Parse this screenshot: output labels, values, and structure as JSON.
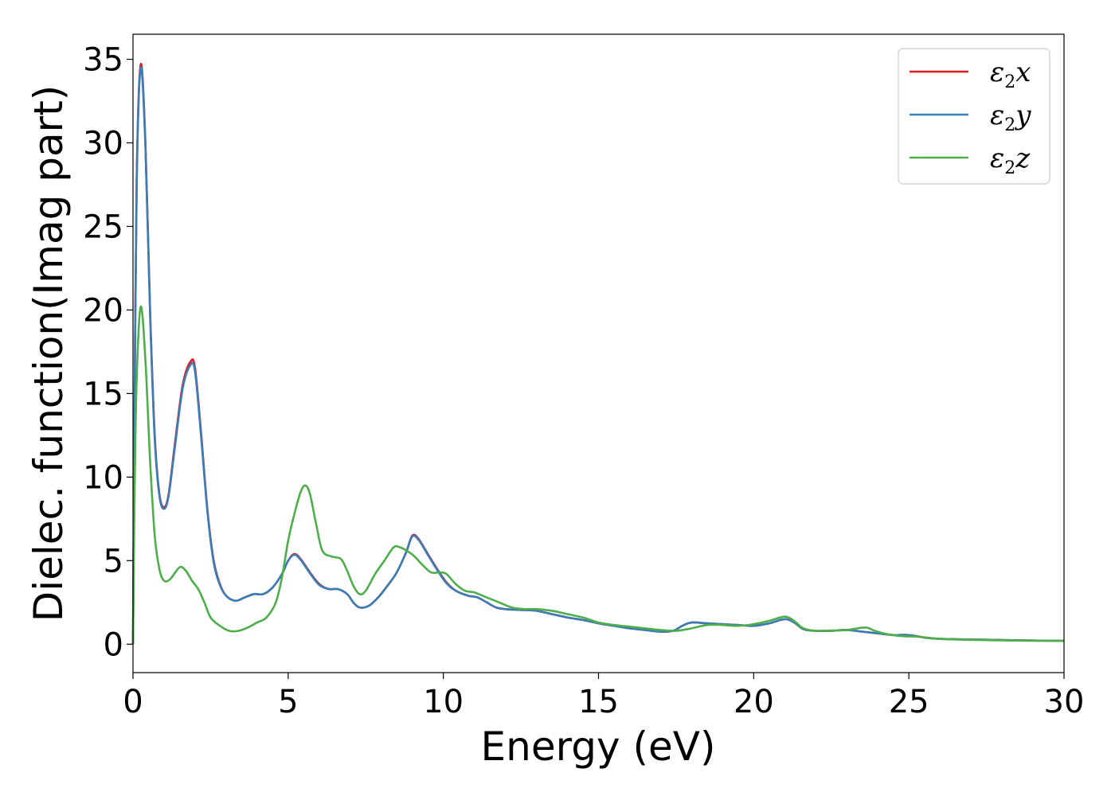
{
  "chart_data": {
    "type": "line",
    "title": "",
    "xlabel": "Energy (eV)",
    "ylabel": "Dielec. function(Imag part)",
    "xlim": [
      0,
      30
    ],
    "ylim": [
      -1.7,
      36.5
    ],
    "xticks": [
      0,
      5,
      10,
      15,
      20,
      25,
      30
    ],
    "yticks": [
      0,
      5,
      10,
      15,
      20,
      25,
      30,
      35
    ],
    "grid": false,
    "legend_position": "top-right",
    "series": [
      {
        "name": "ε2x",
        "legend": {
          "base": "ε",
          "sub": "2",
          "suffix": "x"
        },
        "color": "#e41a1c",
        "points": [
          [
            0,
            0
          ],
          [
            0.05,
            14
          ],
          [
            0.12,
            28
          ],
          [
            0.25,
            34.7
          ],
          [
            0.4,
            30
          ],
          [
            0.55,
            20
          ],
          [
            0.7,
            12.5
          ],
          [
            0.85,
            9
          ],
          [
            1.0,
            8.2
          ],
          [
            1.15,
            9
          ],
          [
            1.35,
            12
          ],
          [
            1.6,
            15.5
          ],
          [
            1.85,
            16.9
          ],
          [
            2.0,
            16.5
          ],
          [
            2.2,
            12.5
          ],
          [
            2.4,
            8
          ],
          [
            2.6,
            5
          ],
          [
            2.8,
            3.6
          ],
          [
            3.0,
            2.9
          ],
          [
            3.3,
            2.6
          ],
          [
            3.6,
            2.8
          ],
          [
            3.9,
            3.0
          ],
          [
            4.2,
            3.0
          ],
          [
            4.5,
            3.4
          ],
          [
            4.8,
            4.2
          ],
          [
            5.0,
            5.0
          ],
          [
            5.2,
            5.4
          ],
          [
            5.4,
            5.1
          ],
          [
            5.7,
            4.3
          ],
          [
            6.0,
            3.6
          ],
          [
            6.3,
            3.3
          ],
          [
            6.6,
            3.3
          ],
          [
            6.9,
            3.0
          ],
          [
            7.1,
            2.5
          ],
          [
            7.3,
            2.2
          ],
          [
            7.6,
            2.3
          ],
          [
            7.9,
            2.8
          ],
          [
            8.2,
            3.5
          ],
          [
            8.5,
            4.3
          ],
          [
            8.8,
            5.5
          ],
          [
            9.0,
            6.5
          ],
          [
            9.2,
            6.3
          ],
          [
            9.5,
            5.4
          ],
          [
            9.8,
            4.5
          ],
          [
            10.1,
            3.7
          ],
          [
            10.4,
            3.2
          ],
          [
            10.8,
            2.9
          ],
          [
            11.1,
            2.8
          ],
          [
            11.4,
            2.5
          ],
          [
            11.7,
            2.2
          ],
          [
            12.0,
            2.1
          ],
          [
            12.5,
            2.05
          ],
          [
            13.0,
            2.0
          ],
          [
            13.5,
            1.8
          ],
          [
            14.0,
            1.6
          ],
          [
            14.5,
            1.45
          ],
          [
            15.0,
            1.25
          ],
          [
            15.5,
            1.1
          ],
          [
            16.0,
            0.95
          ],
          [
            16.5,
            0.85
          ],
          [
            17.0,
            0.75
          ],
          [
            17.4,
            0.8
          ],
          [
            17.7,
            1.1
          ],
          [
            18.0,
            1.3
          ],
          [
            18.5,
            1.25
          ],
          [
            19.0,
            1.2
          ],
          [
            19.5,
            1.15
          ],
          [
            20.0,
            1.1
          ],
          [
            20.5,
            1.25
          ],
          [
            21.0,
            1.5
          ],
          [
            21.3,
            1.3
          ],
          [
            21.6,
            0.9
          ],
          [
            22.0,
            0.8
          ],
          [
            22.5,
            0.8
          ],
          [
            23.0,
            0.85
          ],
          [
            23.5,
            0.75
          ],
          [
            24.0,
            0.65
          ],
          [
            24.5,
            0.55
          ],
          [
            25.0,
            0.55
          ],
          [
            25.5,
            0.4
          ],
          [
            26.0,
            0.32
          ],
          [
            27.0,
            0.28
          ],
          [
            28.0,
            0.25
          ],
          [
            29.0,
            0.22
          ],
          [
            30.0,
            0.2
          ]
        ]
      },
      {
        "name": "ε2y",
        "legend": {
          "base": "ε",
          "sub": "2",
          "suffix": "y"
        },
        "color": "#377eb8",
        "points": [
          [
            0,
            0
          ],
          [
            0.05,
            13.8
          ],
          [
            0.12,
            27.8
          ],
          [
            0.25,
            34.5
          ],
          [
            0.4,
            29.8
          ],
          [
            0.55,
            19.8
          ],
          [
            0.7,
            12.3
          ],
          [
            0.85,
            8.9
          ],
          [
            1.0,
            8.1
          ],
          [
            1.15,
            8.9
          ],
          [
            1.35,
            11.8
          ],
          [
            1.6,
            15.3
          ],
          [
            1.85,
            16.7
          ],
          [
            2.0,
            16.3
          ],
          [
            2.2,
            12.3
          ],
          [
            2.4,
            7.9
          ],
          [
            2.6,
            4.9
          ],
          [
            2.8,
            3.55
          ],
          [
            3.0,
            2.9
          ],
          [
            3.3,
            2.6
          ],
          [
            3.6,
            2.8
          ],
          [
            3.9,
            3.0
          ],
          [
            4.2,
            3.0
          ],
          [
            4.5,
            3.4
          ],
          [
            4.8,
            4.2
          ],
          [
            5.0,
            5.0
          ],
          [
            5.2,
            5.35
          ],
          [
            5.4,
            5.05
          ],
          [
            5.7,
            4.25
          ],
          [
            6.0,
            3.55
          ],
          [
            6.3,
            3.3
          ],
          [
            6.6,
            3.3
          ],
          [
            6.9,
            3.0
          ],
          [
            7.1,
            2.5
          ],
          [
            7.3,
            2.2
          ],
          [
            7.6,
            2.3
          ],
          [
            7.9,
            2.8
          ],
          [
            8.2,
            3.5
          ],
          [
            8.5,
            4.3
          ],
          [
            8.8,
            5.5
          ],
          [
            9.0,
            6.45
          ],
          [
            9.2,
            6.25
          ],
          [
            9.5,
            5.35
          ],
          [
            9.8,
            4.45
          ],
          [
            10.1,
            3.65
          ],
          [
            10.4,
            3.2
          ],
          [
            10.8,
            2.9
          ],
          [
            11.1,
            2.8
          ],
          [
            11.4,
            2.5
          ],
          [
            11.7,
            2.2
          ],
          [
            12.0,
            2.1
          ],
          [
            12.5,
            2.05
          ],
          [
            13.0,
            2.0
          ],
          [
            13.5,
            1.8
          ],
          [
            14.0,
            1.6
          ],
          [
            14.5,
            1.45
          ],
          [
            15.0,
            1.25
          ],
          [
            15.5,
            1.1
          ],
          [
            16.0,
            0.95
          ],
          [
            16.5,
            0.85
          ],
          [
            17.0,
            0.75
          ],
          [
            17.4,
            0.8
          ],
          [
            17.7,
            1.1
          ],
          [
            18.0,
            1.3
          ],
          [
            18.5,
            1.25
          ],
          [
            19.0,
            1.2
          ],
          [
            19.5,
            1.15
          ],
          [
            20.0,
            1.1
          ],
          [
            20.5,
            1.25
          ],
          [
            21.0,
            1.5
          ],
          [
            21.3,
            1.3
          ],
          [
            21.6,
            0.9
          ],
          [
            22.0,
            0.8
          ],
          [
            22.5,
            0.8
          ],
          [
            23.0,
            0.85
          ],
          [
            23.5,
            0.75
          ],
          [
            24.0,
            0.65
          ],
          [
            24.5,
            0.55
          ],
          [
            25.0,
            0.55
          ],
          [
            25.5,
            0.4
          ],
          [
            26.0,
            0.32
          ],
          [
            27.0,
            0.28
          ],
          [
            28.0,
            0.25
          ],
          [
            29.0,
            0.22
          ],
          [
            30.0,
            0.2
          ]
        ]
      },
      {
        "name": "ε2z",
        "legend": {
          "base": "ε",
          "sub": "2",
          "suffix": "z"
        },
        "color": "#4daf4a",
        "points": [
          [
            0,
            0
          ],
          [
            0.05,
            9
          ],
          [
            0.12,
            16
          ],
          [
            0.25,
            20.2
          ],
          [
            0.4,
            17
          ],
          [
            0.55,
            11
          ],
          [
            0.7,
            6.5
          ],
          [
            0.85,
            4.5
          ],
          [
            1.0,
            3.8
          ],
          [
            1.2,
            3.9
          ],
          [
            1.5,
            4.6
          ],
          [
            1.7,
            4.4
          ],
          [
            1.9,
            3.8
          ],
          [
            2.1,
            3.3
          ],
          [
            2.3,
            2.5
          ],
          [
            2.5,
            1.6
          ],
          [
            2.8,
            1.1
          ],
          [
            3.1,
            0.8
          ],
          [
            3.4,
            0.8
          ],
          [
            3.7,
            1.0
          ],
          [
            4.0,
            1.3
          ],
          [
            4.3,
            1.6
          ],
          [
            4.6,
            2.5
          ],
          [
            4.8,
            4.0
          ],
          [
            5.0,
            6.2
          ],
          [
            5.2,
            7.8
          ],
          [
            5.4,
            9.1
          ],
          [
            5.55,
            9.5
          ],
          [
            5.7,
            9.0
          ],
          [
            5.9,
            7.2
          ],
          [
            6.1,
            5.6
          ],
          [
            6.4,
            5.25
          ],
          [
            6.7,
            5.1
          ],
          [
            6.9,
            4.4
          ],
          [
            7.1,
            3.5
          ],
          [
            7.3,
            3.0
          ],
          [
            7.5,
            3.2
          ],
          [
            7.8,
            4.2
          ],
          [
            8.1,
            5.0
          ],
          [
            8.4,
            5.8
          ],
          [
            8.6,
            5.8
          ],
          [
            8.9,
            5.5
          ],
          [
            9.1,
            5.2
          ],
          [
            9.3,
            4.8
          ],
          [
            9.6,
            4.3
          ],
          [
            9.9,
            4.3
          ],
          [
            10.1,
            4.2
          ],
          [
            10.4,
            3.6
          ],
          [
            10.7,
            3.2
          ],
          [
            11.0,
            3.1
          ],
          [
            11.4,
            2.8
          ],
          [
            11.8,
            2.5
          ],
          [
            12.2,
            2.2
          ],
          [
            12.6,
            2.1
          ],
          [
            13.0,
            2.1
          ],
          [
            13.5,
            2.0
          ],
          [
            14.0,
            1.8
          ],
          [
            14.5,
            1.6
          ],
          [
            15.0,
            1.3
          ],
          [
            15.5,
            1.15
          ],
          [
            16.0,
            1.05
          ],
          [
            16.5,
            0.95
          ],
          [
            17.0,
            0.85
          ],
          [
            17.5,
            0.8
          ],
          [
            18.0,
            0.95
          ],
          [
            18.5,
            1.15
          ],
          [
            19.0,
            1.15
          ],
          [
            19.5,
            1.1
          ],
          [
            20.0,
            1.2
          ],
          [
            20.5,
            1.4
          ],
          [
            21.0,
            1.65
          ],
          [
            21.3,
            1.4
          ],
          [
            21.6,
            0.95
          ],
          [
            22.0,
            0.8
          ],
          [
            22.5,
            0.82
          ],
          [
            23.0,
            0.85
          ],
          [
            23.6,
            1.0
          ],
          [
            23.9,
            0.8
          ],
          [
            24.3,
            0.6
          ],
          [
            24.8,
            0.48
          ],
          [
            25.3,
            0.45
          ],
          [
            26.0,
            0.32
          ],
          [
            27.0,
            0.26
          ],
          [
            28.0,
            0.23
          ],
          [
            29.0,
            0.21
          ],
          [
            30.0,
            0.2
          ]
        ]
      }
    ]
  }
}
